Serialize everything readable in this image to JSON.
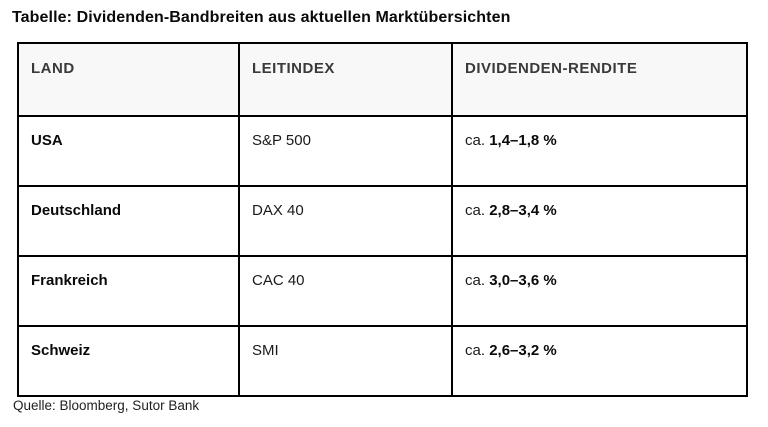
{
  "title": "Tabelle: Dividenden-Bandbreiten aus aktuellen Marktübersichten",
  "source": "Quelle: Bloomberg, Sutor Bank",
  "colors": {
    "border": "#000000",
    "header_bg": "#f8f8f8",
    "header_text": "#3a3a3a",
    "body_text": "#000000"
  },
  "table": {
    "columns": [
      "LAND",
      "LEITINDEX",
      "DIVIDENDEN-RENDITE"
    ],
    "rows": [
      {
        "land": "USA",
        "index": "S&P 500",
        "prefix": "ca.",
        "range": "1,4–1,8 %"
      },
      {
        "land": "Deutschland",
        "index": "DAX 40",
        "prefix": "ca.",
        "range": "2,8–3,4 %"
      },
      {
        "land": "Frankreich",
        "index": "CAC 40",
        "prefix": "ca.",
        "range": "3,0–3,6 %"
      },
      {
        "land": "Schweiz",
        "index": "SMI",
        "prefix": "ca.",
        "range": "2,6–3,2 %"
      }
    ]
  }
}
